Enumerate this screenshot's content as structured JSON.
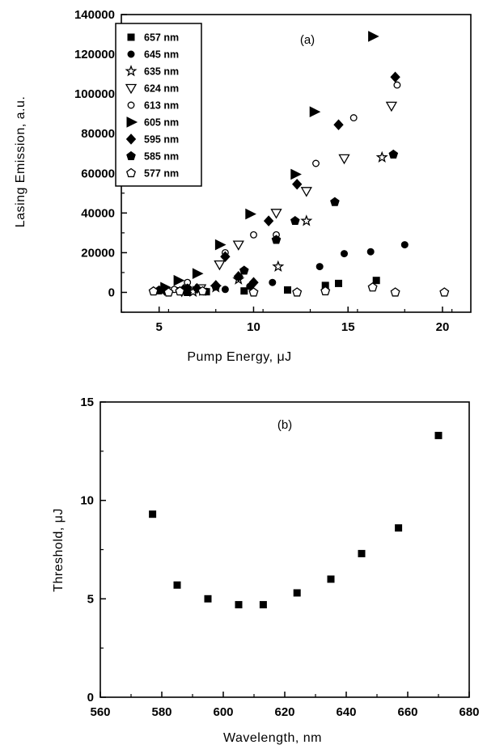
{
  "chart_data": [
    {
      "type": "scatter",
      "panel_label": "(a)",
      "xlabel": "Pump Energy, μJ",
      "ylabel": "Lasing Emission, a.u.",
      "xlim": [
        3,
        21.5
      ],
      "ylim": [
        -10000,
        140000
      ],
      "xticks": [
        5,
        10,
        15,
        20
      ],
      "yticks": [
        0,
        20000,
        40000,
        60000,
        80000,
        100000,
        120000,
        140000
      ],
      "xtick_labels": [
        "5",
        "10",
        "15",
        "20"
      ],
      "ytick_labels": [
        "0",
        "20000",
        "40000",
        "60000",
        "80000",
        "100000",
        "120000",
        "140000"
      ],
      "legend_position": "top-left",
      "series": [
        {
          "name": "657 nm",
          "marker": "square-filled",
          "points": [
            [
              6.5,
              0
            ],
            [
              7.5,
              300
            ],
            [
              9.5,
              700
            ],
            [
              11.8,
              1200
            ],
            [
              13.8,
              3500
            ],
            [
              14.5,
              4500
            ],
            [
              16.5,
              6000
            ]
          ]
        },
        {
          "name": "645 nm",
          "marker": "circle-filled-small",
          "points": [
            [
              6.5,
              200
            ],
            [
              7.5,
              500
            ],
            [
              8.5,
              1500
            ],
            [
              9.8,
              3000
            ],
            [
              11,
              5000
            ],
            [
              13.5,
              13000
            ],
            [
              14.8,
              19500
            ],
            [
              16.2,
              20500
            ],
            [
              18,
              24000
            ]
          ]
        },
        {
          "name": "635 nm",
          "marker": "star-open",
          "points": [
            [
              6.8,
              300
            ],
            [
              7.3,
              800
            ],
            [
              8,
              2500
            ],
            [
              9.2,
              6500
            ],
            [
              11.3,
              13000
            ],
            [
              12.8,
              36000
            ],
            [
              16.8,
              68000
            ]
          ]
        },
        {
          "name": "624 nm",
          "marker": "triangle-down-open",
          "points": [
            [
              6.2,
              500
            ],
            [
              7.2,
              2000
            ],
            [
              8.2,
              14000
            ],
            [
              9.2,
              24000
            ],
            [
              11.2,
              40000
            ],
            [
              12.8,
              51000
            ],
            [
              14.8,
              67500
            ],
            [
              17.3,
              94000
            ]
          ]
        },
        {
          "name": "613 nm",
          "marker": "circle-open",
          "points": [
            [
              5.8,
              1500
            ],
            [
              6.5,
              5000
            ],
            [
              8.5,
              20000
            ],
            [
              10,
              29000
            ],
            [
              11.2,
              29000
            ],
            [
              13.3,
              65000
            ],
            [
              15.3,
              88000
            ],
            [
              17.6,
              104500
            ]
          ]
        },
        {
          "name": "605 nm",
          "marker": "triangle-right-filled",
          "points": [
            [
              5.3,
              2500
            ],
            [
              6,
              6000
            ],
            [
              7,
              9500
            ],
            [
              8.2,
              24000
            ],
            [
              9.8,
              39500
            ],
            [
              12.2,
              59500
            ],
            [
              13.2,
              91000
            ],
            [
              16.3,
              129000
            ]
          ]
        },
        {
          "name": "595 nm",
          "marker": "diamond-filled",
          "points": [
            [
              5.3,
              1000
            ],
            [
              6.3,
              1500
            ],
            [
              7,
              2000
            ],
            [
              8,
              3500
            ],
            [
              8.5,
              18000
            ],
            [
              9.2,
              8000
            ],
            [
              10,
              5000
            ],
            [
              10.8,
              36000
            ],
            [
              12.3,
              54500
            ],
            [
              14.5,
              84500
            ],
            [
              17.5,
              108500
            ]
          ]
        },
        {
          "name": "585 nm",
          "marker": "pentagon-filled",
          "points": [
            [
              5,
              1000
            ],
            [
              6.5,
              2000
            ],
            [
              8,
              3000
            ],
            [
              9.5,
              11000
            ],
            [
              11.2,
              26500
            ],
            [
              12.2,
              36000
            ],
            [
              14.3,
              45500
            ],
            [
              17.4,
              69500
            ]
          ]
        },
        {
          "name": "577 nm",
          "marker": "pentagon-open",
          "points": [
            [
              4.7,
              500
            ],
            [
              5.5,
              0
            ],
            [
              6.1,
              500
            ],
            [
              7.3,
              600
            ],
            [
              10,
              0
            ],
            [
              12.3,
              0
            ],
            [
              13.8,
              600
            ],
            [
              16.3,
              2500
            ],
            [
              17.5,
              0
            ],
            [
              20.1,
              0
            ]
          ]
        }
      ]
    },
    {
      "type": "scatter",
      "panel_label": "(b)",
      "xlabel": "Wavelength, nm",
      "ylabel": "Threshold, μJ",
      "xlim": [
        560,
        680
      ],
      "ylim": [
        0,
        15
      ],
      "xticks": [
        560,
        580,
        600,
        620,
        640,
        660,
        680
      ],
      "yticks": [
        0,
        5,
        10,
        15
      ],
      "xtick_labels": [
        "560",
        "580",
        "600",
        "620",
        "640",
        "660",
        "680"
      ],
      "ytick_labels": [
        "0",
        "5",
        "10",
        "15"
      ],
      "series": [
        {
          "name": "",
          "marker": "square-filled",
          "points": [
            [
              577,
              9.3
            ],
            [
              585,
              5.7
            ],
            [
              595,
              5.0
            ],
            [
              605,
              4.7
            ],
            [
              613,
              4.7
            ],
            [
              624,
              5.3
            ],
            [
              635,
              6.0
            ],
            [
              645,
              7.3
            ],
            [
              657,
              8.6
            ],
            [
              670,
              13.3
            ]
          ]
        }
      ]
    }
  ]
}
